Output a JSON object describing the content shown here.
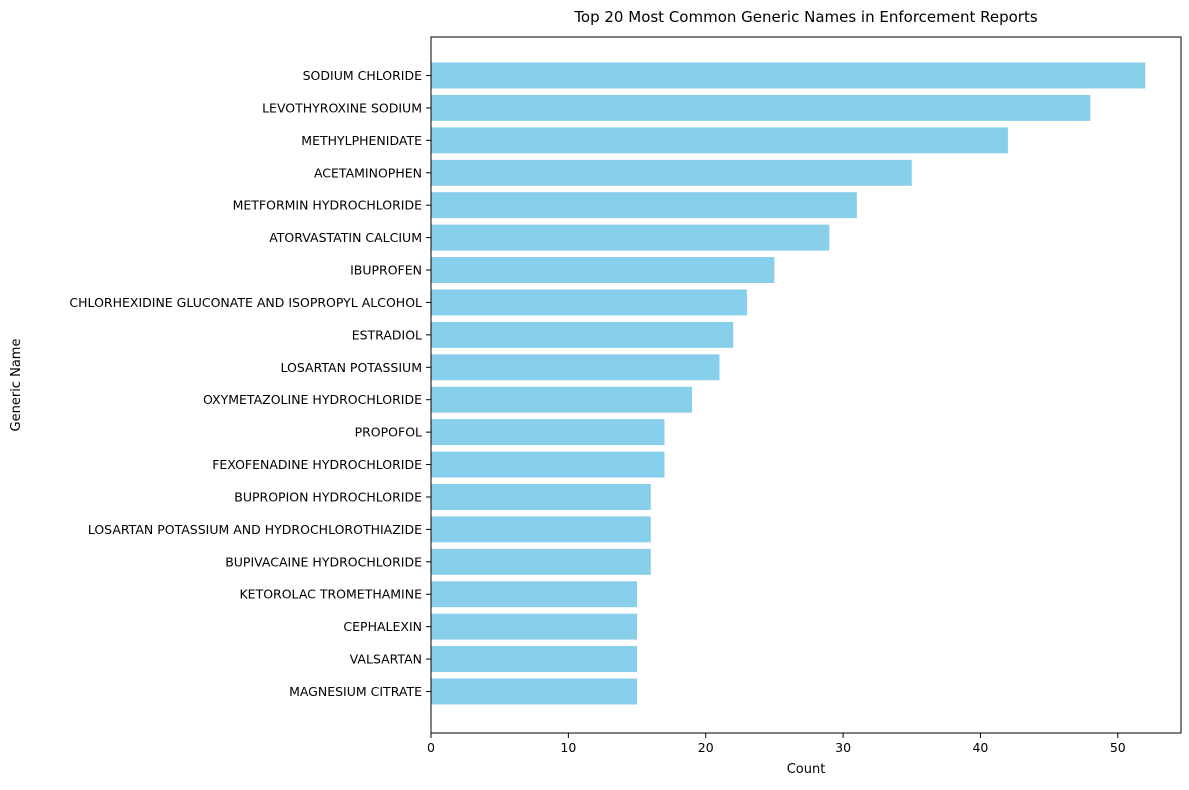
{
  "chart_data": {
    "type": "bar",
    "orientation": "horizontal",
    "title": "Top 20 Most Common Generic Names in Enforcement Reports",
    "xlabel": "Count",
    "ylabel": "Generic Name",
    "xlim": [
      0,
      54.6
    ],
    "xticks": [
      0,
      10,
      20,
      30,
      40,
      50
    ],
    "grid": false,
    "bar_color": "#87ceeb",
    "categories": [
      "SODIUM CHLORIDE",
      "LEVOTHYROXINE SODIUM",
      "METHYLPHENIDATE",
      "ACETAMINOPHEN",
      "METFORMIN HYDROCHLORIDE",
      "ATORVASTATIN CALCIUM",
      "IBUPROFEN",
      "CHLORHEXIDINE GLUCONATE AND ISOPROPYL ALCOHOL",
      "ESTRADIOL",
      "LOSARTAN POTASSIUM",
      "OXYMETAZOLINE HYDROCHLORIDE",
      "PROPOFOL",
      "FEXOFENADINE HYDROCHLORIDE",
      "BUPROPION HYDROCHLORIDE",
      "LOSARTAN POTASSIUM AND HYDROCHLOROTHIAZIDE",
      "BUPIVACAINE HYDROCHLORIDE",
      "KETOROLAC TROMETHAMINE",
      "CEPHALEXIN",
      "VALSARTAN",
      "MAGNESIUM CITRATE"
    ],
    "values": [
      52,
      48,
      42,
      35,
      31,
      29,
      25,
      23,
      22,
      21,
      19,
      17,
      17,
      16,
      16,
      16,
      15,
      15,
      15,
      15
    ]
  }
}
